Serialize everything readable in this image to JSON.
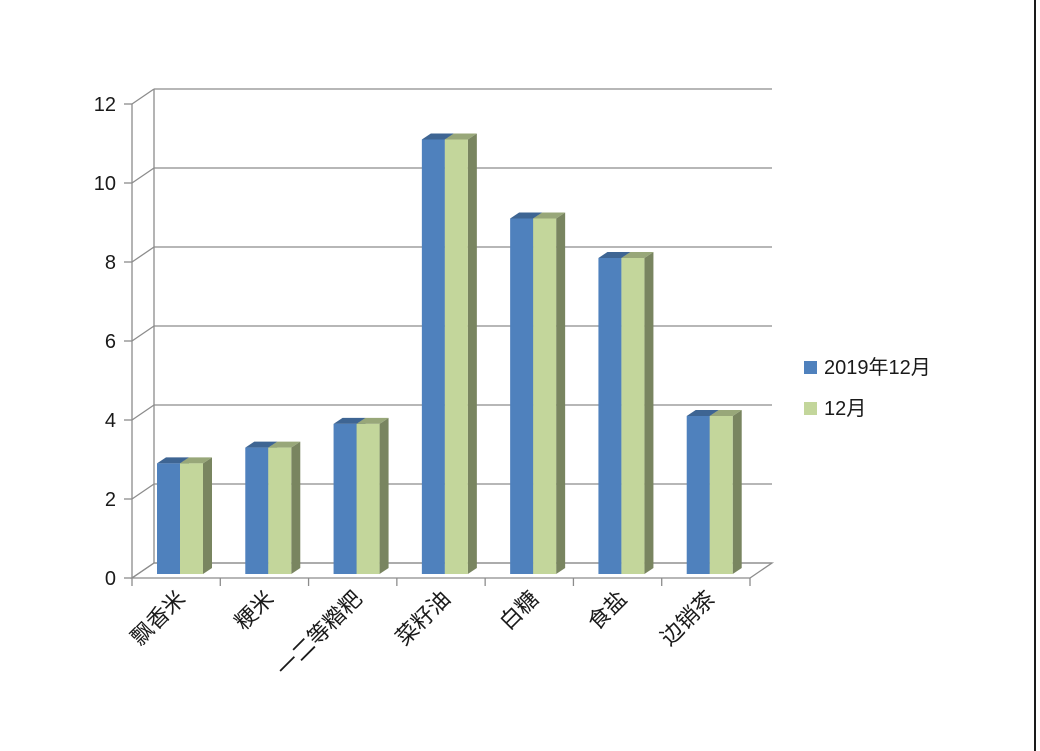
{
  "chart_data": {
    "type": "bar",
    "categories": [
      "飘香米",
      "粳米",
      "一二等糌粑",
      "菜籽油",
      "白糖",
      "食盐",
      "边销茶"
    ],
    "series": [
      {
        "name": "2019年12月",
        "values": [
          2.8,
          3.2,
          3.8,
          11,
          9,
          8,
          4
        ],
        "color": "#4F81BD"
      },
      {
        "name": "12月",
        "values": [
          2.8,
          3.2,
          3.8,
          11,
          9,
          8,
          4
        ],
        "color": "#C3D69B"
      }
    ],
    "ylim": [
      0,
      12
    ],
    "yticks": [
      0,
      2,
      4,
      6,
      8,
      10,
      12
    ],
    "grid": true,
    "legend_position": "right",
    "style": "3d-clustered-column"
  }
}
